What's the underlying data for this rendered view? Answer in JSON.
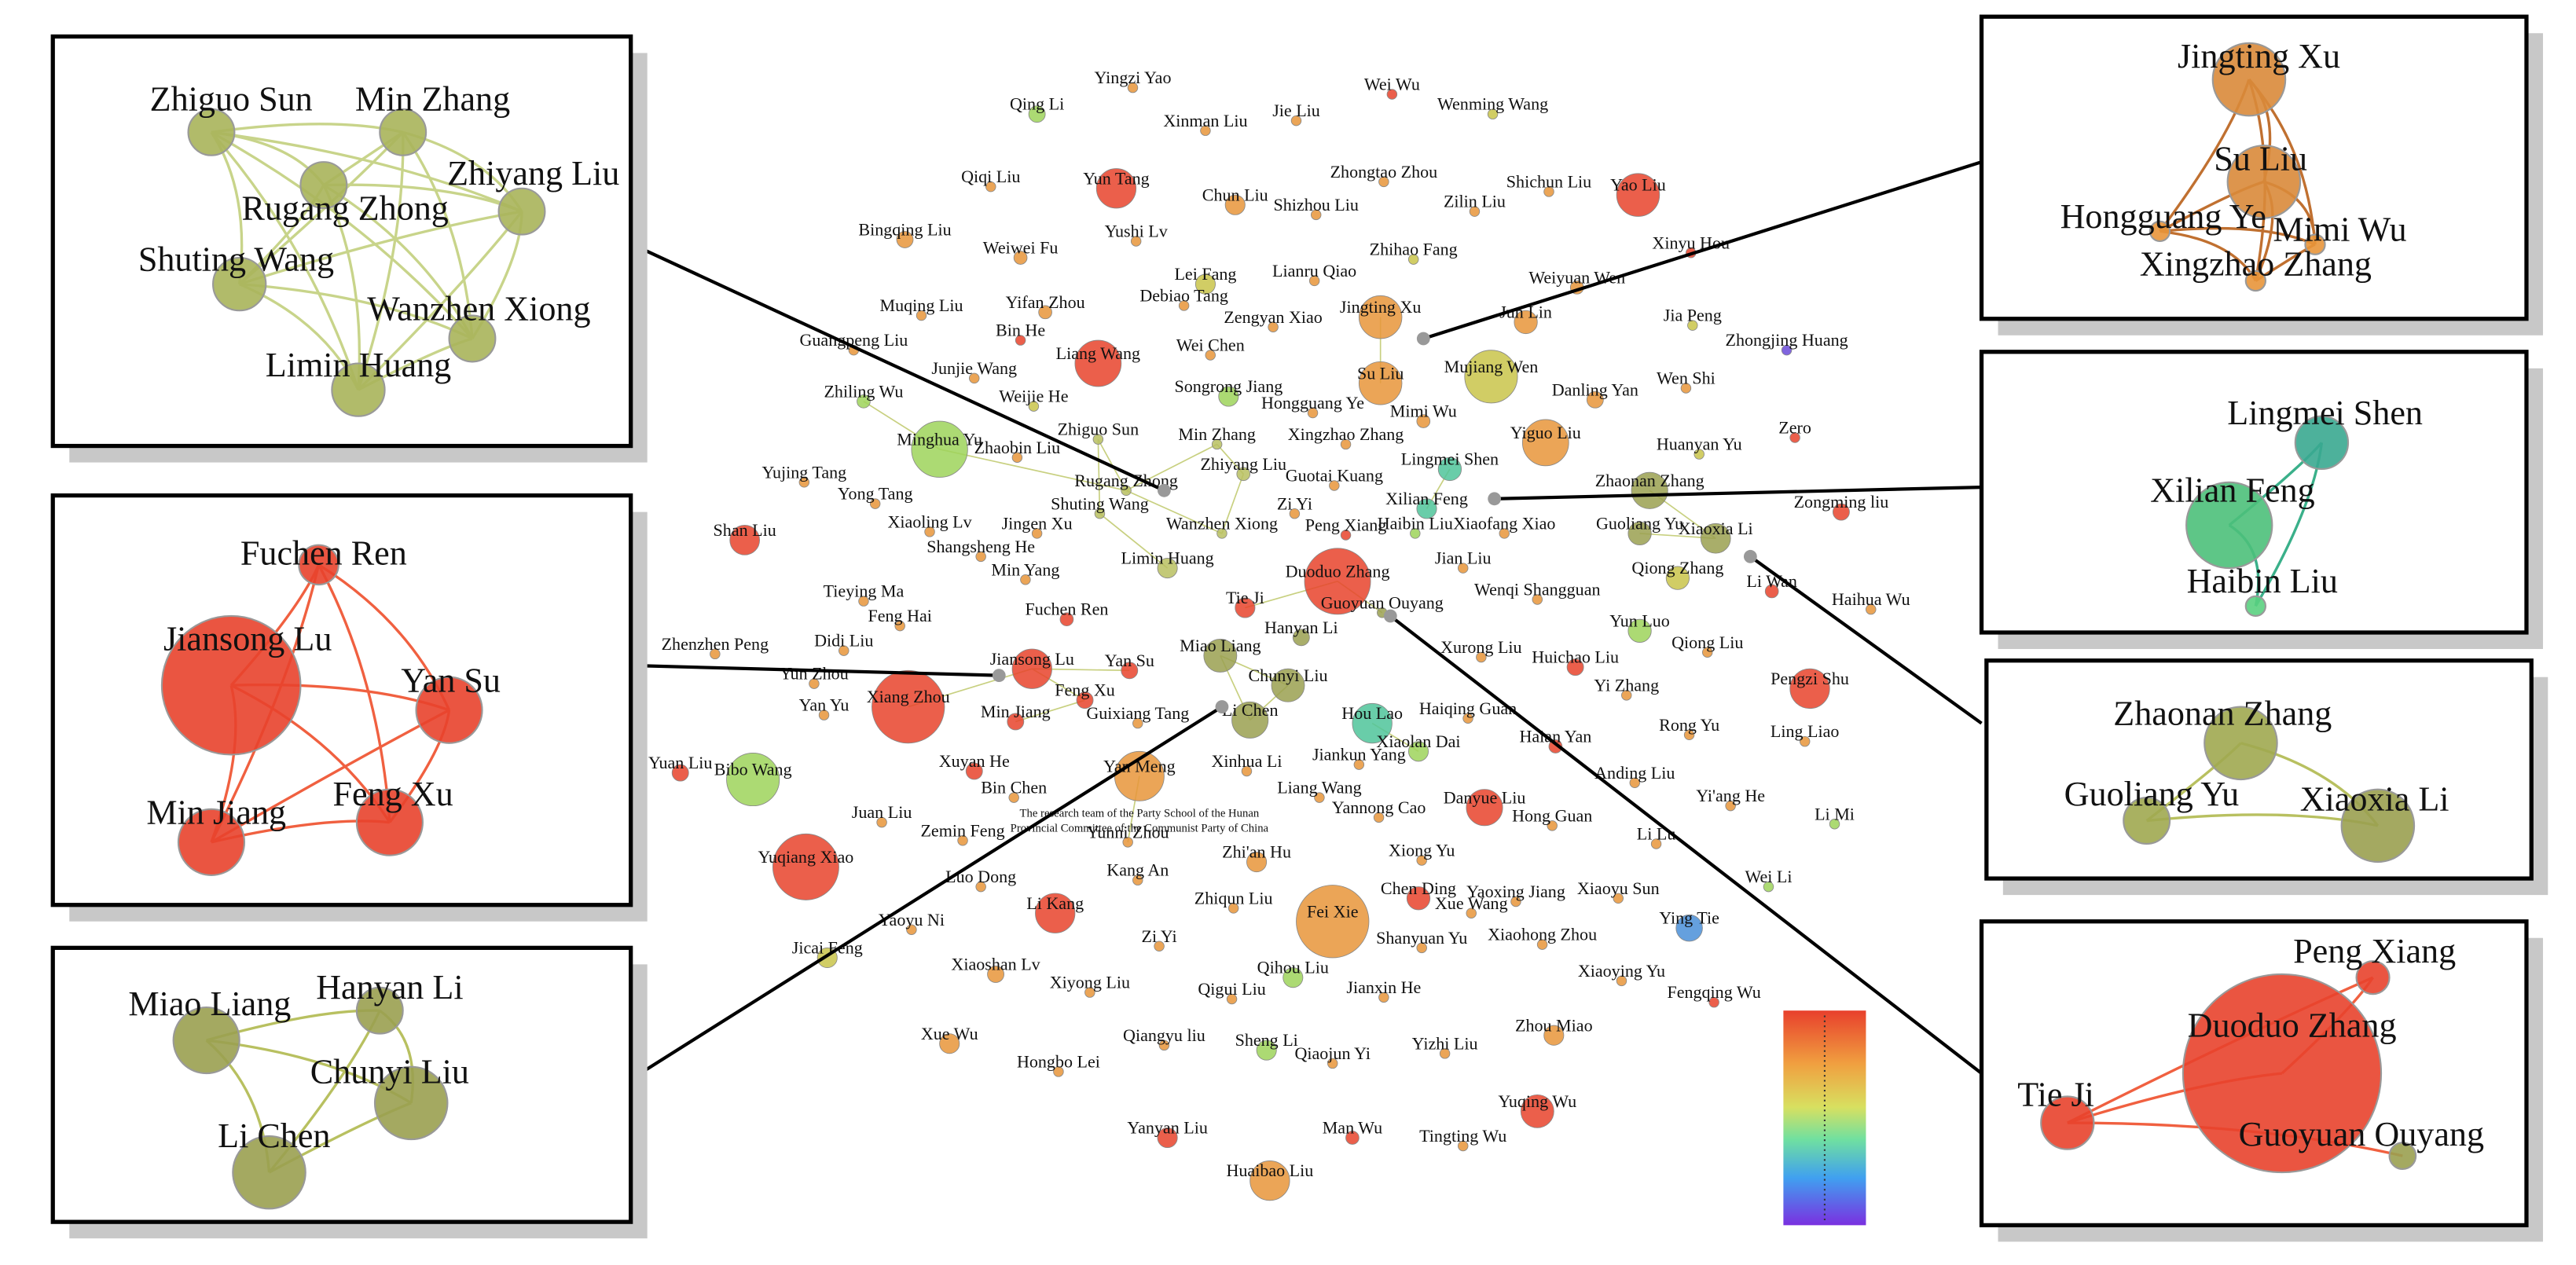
{
  "insets": [
    {
      "nodes": [
        "Zhiguo Sun",
        "Min Zhang",
        "Zhiyang Liu",
        "Rugang Zhong",
        "Shuting Wang",
        "Wanzhen Xiong",
        "Limin Huang"
      ]
    },
    {
      "nodes": [
        "Fuchen Ren",
        "Jiansong Lu",
        "Yan Su",
        "Feng Xu",
        "Min Jiang"
      ]
    },
    {
      "nodes": [
        "Miao Liang",
        "Hanyan Li",
        "Chunyi Liu",
        "Li Chen"
      ]
    },
    {
      "nodes": [
        "Jingting Xu",
        "Su Liu",
        "Hongguang Ye",
        "Mimi Wu",
        "Xingzhao Zhang"
      ]
    },
    {
      "nodes": [
        "Lingmei Shen",
        "Xilian Feng",
        "Haibin Liu"
      ]
    },
    {
      "nodes": [
        "Zhaonan Zhang",
        "Guoliang Yu",
        "Xiaoxia Li"
      ]
    },
    {
      "nodes": [
        "Peng Xiang",
        "Duoduo Zhang",
        "Tie Ji",
        "Guoyuan Ouyang"
      ]
    }
  ],
  "network": {
    "nodes": [
      "Yingzi Yao",
      "Qing Li",
      "Wei Wu",
      "Wenming Wang",
      "Xinman Liu",
      "Jie Liu",
      "Qiqi Liu",
      "Yun Tang",
      "Chun Liu",
      "Zhongtao Zhou",
      "Shichun Liu",
      "Yao Liu",
      "Shizhou Liu",
      "Zilin Liu",
      "Bingqing Liu",
      "Weiwei Fu",
      "Yushi Lv",
      "Zhihao Fang",
      "Xinyu Hou",
      "Lei Fang",
      "Lianru Qiao",
      "Weiyuan Wen",
      "Jingting Xu",
      "Muqing Liu",
      "Yifan Zhou",
      "Debiao Tang",
      "Jun Lin",
      "Jia Peng",
      "Bin He",
      "Zengyan Xiao",
      "Guangpeng Liu",
      "Liang Wang",
      "Wei Chen",
      "Zhongjing Huang",
      "Su Liu",
      "Mujiang Wen",
      "Junjie Wang",
      "Danling Yan",
      "Wen Shi",
      "Weijie He",
      "Songrong Jiang",
      "Hongguang Ye",
      "Mimi Wu",
      "Zhiling Wu",
      "Yiguo Liu",
      "Minghua Yu",
      "Zhaobin Liu",
      "Zhiguo Sun",
      "Min Zhang",
      "Xingzhao Zhang",
      "Huanyan Yu",
      "Zero",
      "Lingmei Shen",
      "Yujing Tang",
      "Zhiyang Liu",
      "Guotai Kuang",
      "Zhaonan Zhang",
      "Rugang Zhong",
      "Xilian Feng",
      "Zongming liu",
      "Yong Tang",
      "Shuting Wang",
      "Zi Yi",
      "Shan Liu",
      "Xiaoling Lv",
      "Jingen Xu",
      "Wanzhen Xiong",
      "Peng Xiang",
      "Haibin Liu",
      "Xiaofang Xiao",
      "Guoliang Yu",
      "Xiaoxia Li",
      "Shangsheng He",
      "Limin Huang",
      "Duoduo Zhang",
      "Jian Liu",
      "Qiong Zhang",
      "Min Yang",
      "Li Wan",
      "Tie Ji",
      "Wenqi Shangguan",
      "Tieying Ma",
      "Haihua Wu",
      "Guoyuan Ouyang",
      "Feng Hai",
      "Fuchen Ren",
      "Yun Luo",
      "Hanyan Li",
      "Miao Liang",
      "Didi Liu",
      "Zhenzhen Peng",
      "Jiansong Lu",
      "Xurong Liu",
      "Huichao Liu",
      "Qiong Liu",
      "Yan Su",
      "Pengzi Shu",
      "Chunyi Liu",
      "Yun Zhou",
      "Xiang Zhou",
      "Yi Zhang",
      "Feng Xu",
      "Li Chen",
      "Hou Lao",
      "Yan Yu",
      "Min Jiang",
      "Guixiang Tang",
      "Haiqing Guan",
      "Rong Yu",
      "Xiaolan Dai",
      "Haian Yan",
      "Ling Liao",
      "Yuan Liu",
      "Bibo Wang",
      "Xuyan He",
      "Jiankun Yang",
      "Yan Meng",
      "Xinhua Li",
      "Anding Liu",
      "Bin Chen",
      "Liang Wang",
      "Danyue Liu",
      "Yi'ang He",
      "Yannong Cao",
      "Hong Guan",
      "Juan Liu",
      "Li Mi",
      "Zemin Feng",
      "Yunni Zhou",
      "Li Lu",
      "Yuqiang Xiao",
      "Zhi'an Hu",
      "Xiong Yu",
      "Kang An",
      "Wei Li",
      "Luo Dong",
      "Chen Ding",
      "Yaoxing Jiang",
      "Xue Wang",
      "Xiaoyu Sun",
      "Li Kang",
      "Zhiqun Liu",
      "Fei Xie",
      "Ying Tie",
      "Yaoyu Ni",
      "Shanyuan Yu",
      "Xiaohong Zhou",
      "Jicai Feng",
      "Zi Yi",
      "Xiaoshan Lv",
      "Qihou Liu",
      "Xiaoying Yu",
      "Xiyong Liu",
      "Qigui Liu",
      "Jianxin He",
      "Fengqing Wu",
      "Xue Wu",
      "Zhou Miao",
      "Sheng Li",
      "Qiangyu liu",
      "Qiaojun Yi",
      "Yizhi Liu",
      "Hongbo Lei",
      "Yuqing Wu",
      "Yanyan Liu",
      "Man Wu",
      "Tingting Wu",
      "Huaibao Liu"
    ],
    "caption_lines": [
      "The research team of the Party School of the Hunan",
      "Provincial Committee of the Communist Party of China"
    ]
  }
}
